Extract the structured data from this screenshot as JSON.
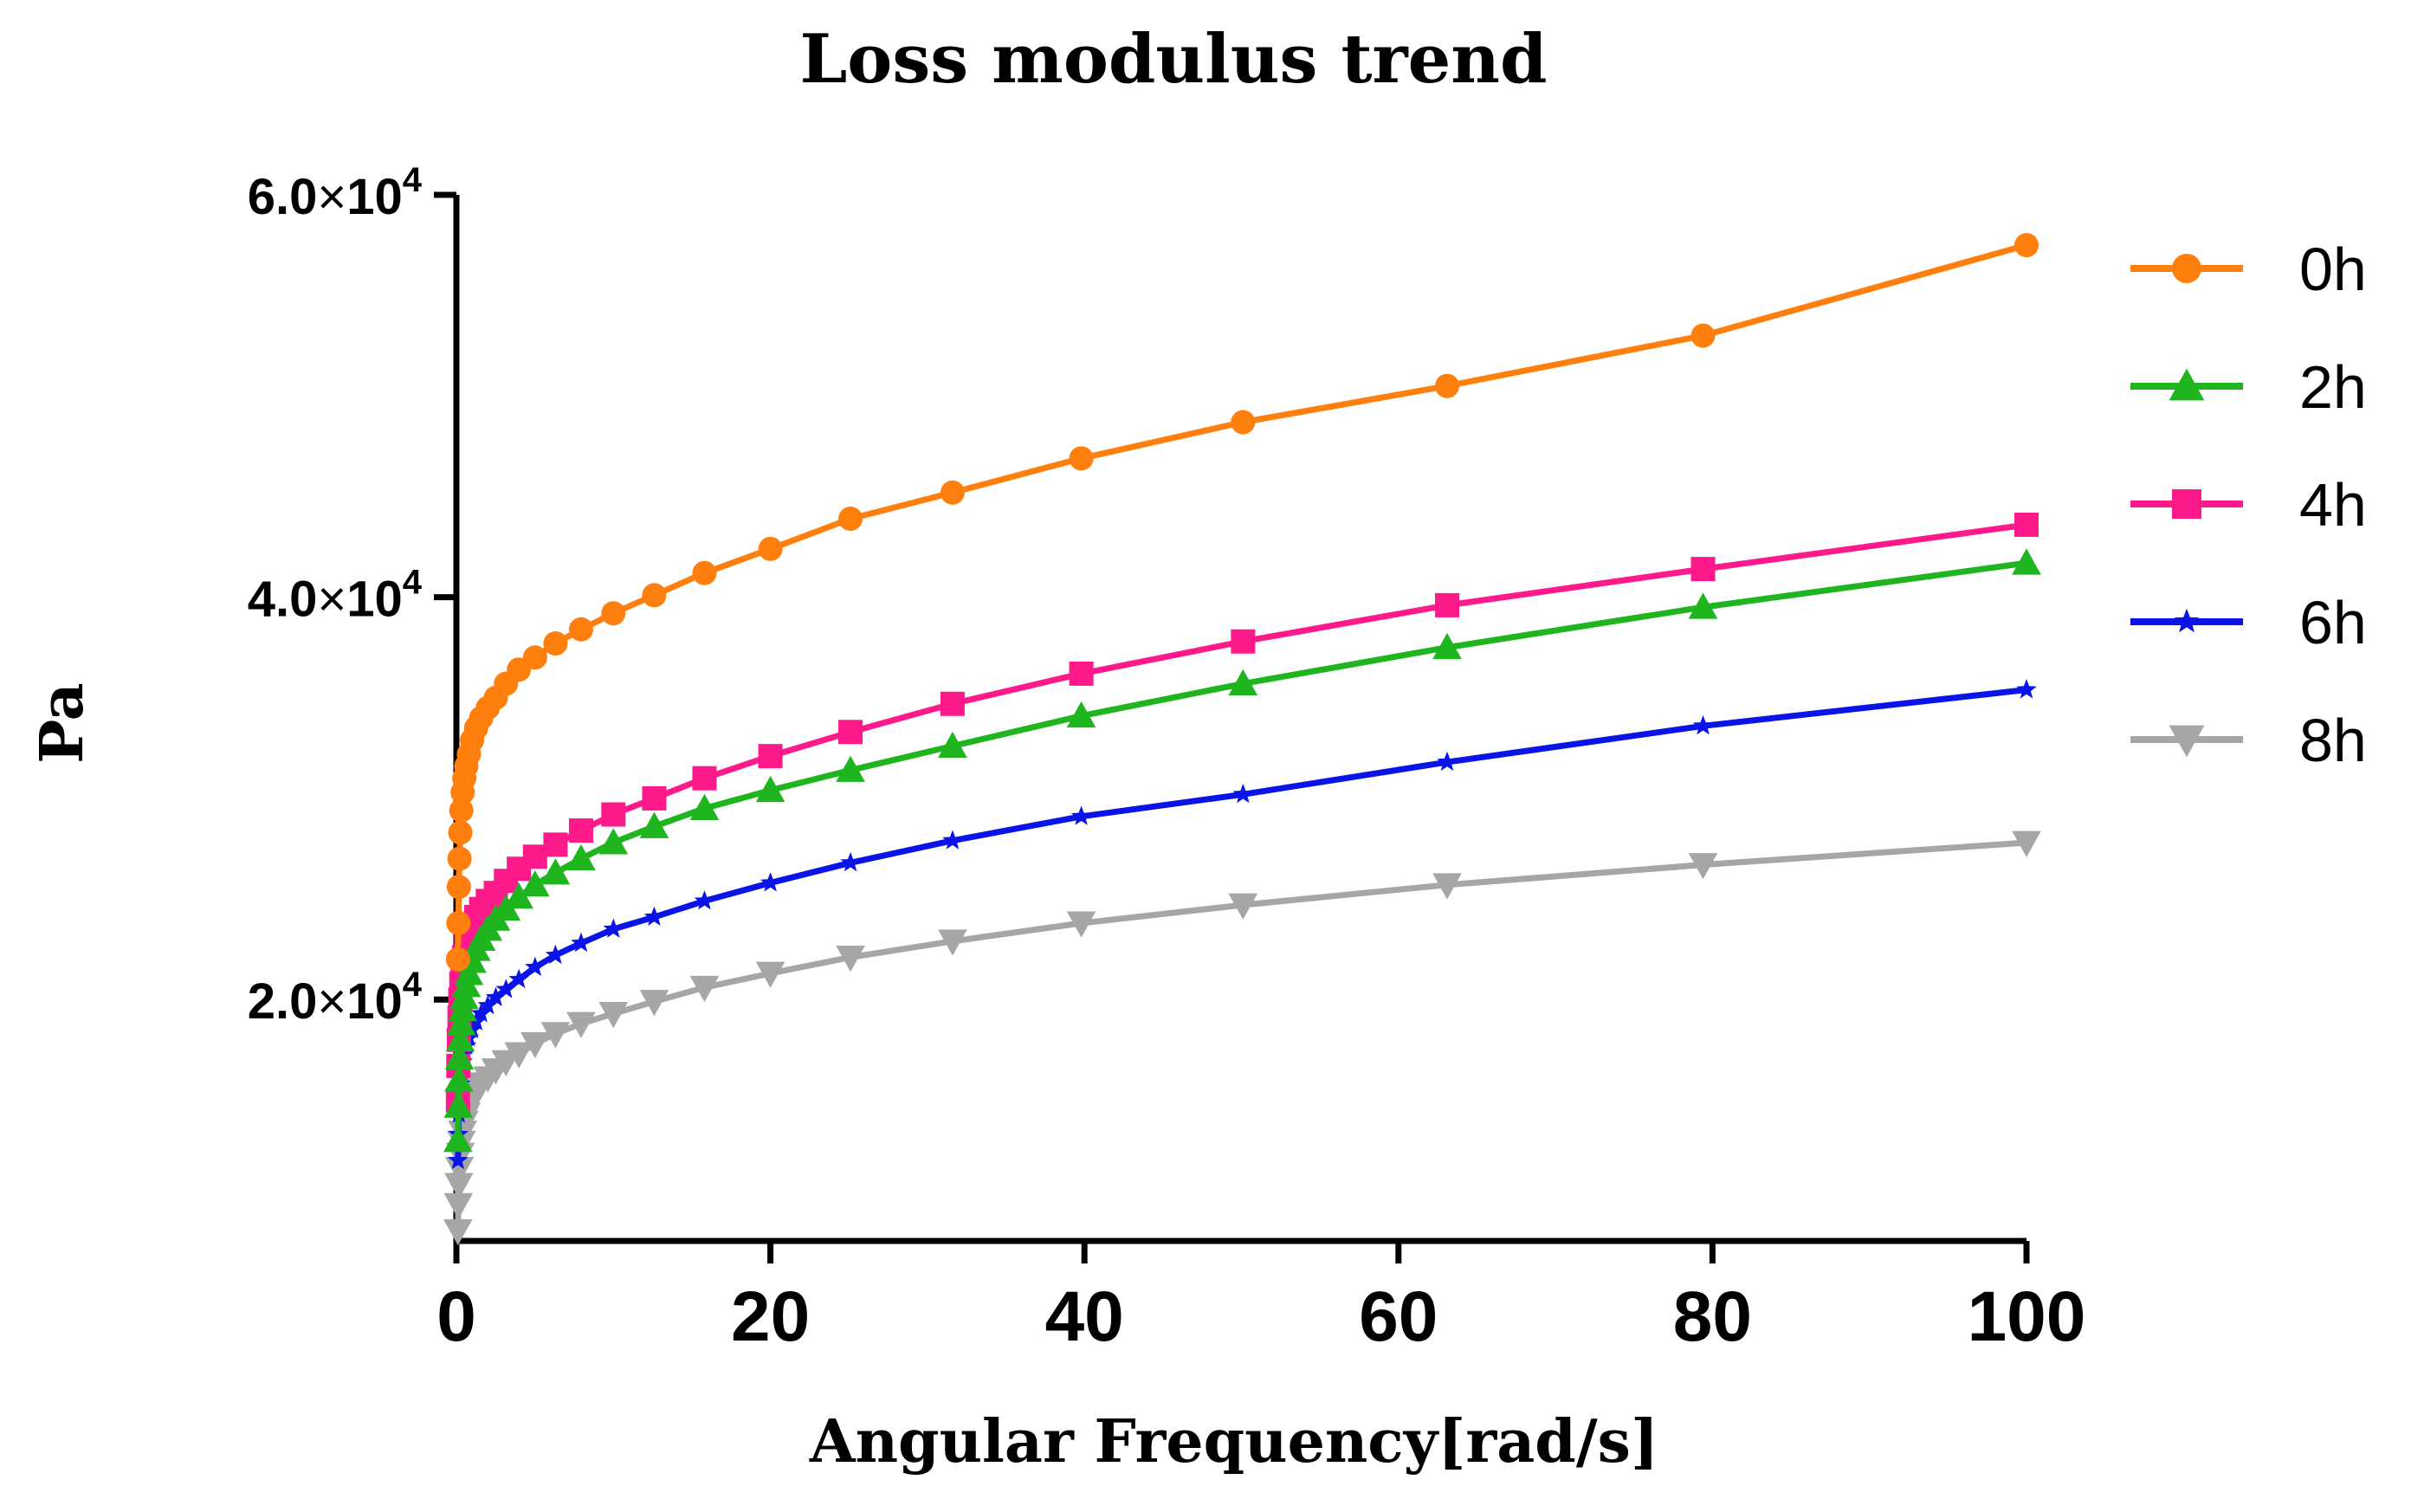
{
  "chart_data": {
    "type": "line",
    "title": "Loss modulus trend",
    "xlabel": "Angular Frequency[rad/s]",
    "ylabel": "Pa",
    "xlim": [
      0,
      100
    ],
    "ylim": [
      8000,
      60000
    ],
    "xticks": [
      0,
      20,
      40,
      60,
      80,
      100
    ],
    "xtick_labels": [
      "0",
      "20",
      "40",
      "60",
      "80",
      "100"
    ],
    "yticks": [
      20000,
      40000,
      60000
    ],
    "ytick_labels": [
      {
        "mantissa": "2.0",
        "times": "×",
        "base": "10",
        "exp": "4"
      },
      {
        "mantissa": "4.0",
        "times": "×",
        "base": "10",
        "exp": "4"
      },
      {
        "mantissa": "6.0",
        "times": "×",
        "base": "10",
        "exp": "4"
      }
    ],
    "legend_position": "right",
    "x": [
      0.1,
      0.126,
      0.158,
      0.2,
      0.251,
      0.316,
      0.398,
      0.501,
      0.631,
      0.794,
      1,
      1.26,
      1.58,
      2,
      2.51,
      3.16,
      3.98,
      5.01,
      6.31,
      7.94,
      10,
      12.6,
      15.8,
      20,
      25.1,
      31.6,
      39.8,
      50.1,
      63.1,
      79.4,
      100
    ],
    "series": [
      {
        "name": "0h",
        "color": "#FF7F0E",
        "marker": "circle",
        "values": [
          22000,
          23800,
          25600,
          27000,
          28300,
          29400,
          30300,
          31000,
          31600,
          32200,
          32900,
          33500,
          34000,
          34500,
          35000,
          35700,
          36400,
          37000,
          37700,
          38400,
          39200,
          40100,
          41200,
          42400,
          43900,
          45200,
          46900,
          48700,
          50500,
          53000,
          57500
        ]
      },
      {
        "name": "2h",
        "color": "#1EB51E",
        "marker": "triangle-up",
        "values": [
          13000,
          14700,
          16000,
          17100,
          18000,
          18800,
          19500,
          20100,
          20700,
          21300,
          21900,
          22500,
          23000,
          23500,
          24000,
          24500,
          25100,
          25700,
          26300,
          27000,
          27800,
          28600,
          29500,
          30400,
          31400,
          32600,
          34100,
          35700,
          37500,
          39500,
          41700
        ]
      },
      {
        "name": "4h",
        "color": "#FF1A8C",
        "marker": "square",
        "values": [
          15000,
          16700,
          18000,
          19100,
          20000,
          20800,
          21500,
          22100,
          22700,
          23200,
          23700,
          24100,
          24500,
          24900,
          25300,
          25900,
          26500,
          27100,
          27700,
          28400,
          29200,
          30000,
          31000,
          32100,
          33300,
          34700,
          36200,
          37800,
          39600,
          41400,
          43600
        ]
      },
      {
        "name": "6h",
        "color": "#0A14E6",
        "marker": "star",
        "values": [
          12000,
          13300,
          14300,
          15100,
          15800,
          16400,
          16900,
          17300,
          17700,
          18100,
          18500,
          18900,
          19300,
          19700,
          20100,
          20500,
          21000,
          21600,
          22200,
          22800,
          23500,
          24100,
          24900,
          25800,
          26800,
          27900,
          29100,
          30200,
          31800,
          33600,
          35400
        ]
      },
      {
        "name": "8h",
        "color": "#A6A6A6",
        "marker": "triangle-down",
        "values": [
          8500,
          9800,
          10800,
          11600,
          12300,
          12900,
          13400,
          13900,
          14300,
          14700,
          15100,
          15500,
          15800,
          16100,
          16500,
          16900,
          17300,
          17800,
          18300,
          18800,
          19300,
          19900,
          20600,
          21300,
          22100,
          22900,
          23800,
          24700,
          25700,
          26700,
          27800
        ]
      }
    ]
  }
}
